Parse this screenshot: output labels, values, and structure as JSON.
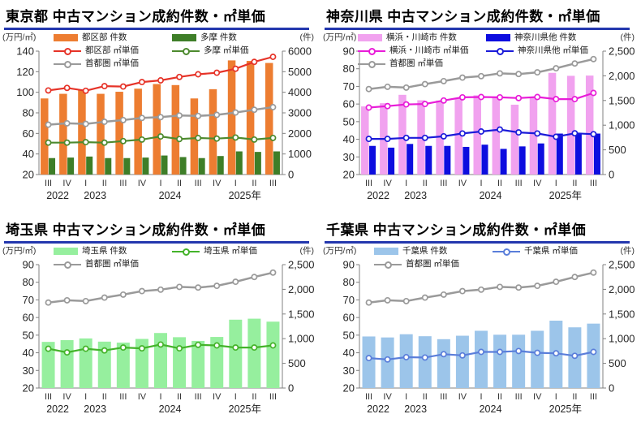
{
  "chart_data": [
    {
      "type": "bar+line",
      "title": "東京都 中古マンション成約件数・㎡単価",
      "left_axis": {
        "unit": "(万円/㎡)",
        "min": 20,
        "max": 140,
        "step": 20
      },
      "right_axis": {
        "unit": "(件)",
        "min": 0,
        "max": 6000,
        "step": 1000,
        "comma": false
      },
      "quarters": [
        "III",
        "IV",
        "I",
        "II",
        "III",
        "IV",
        "I",
        "II",
        "III",
        "IV",
        "I",
        "II",
        "III"
      ],
      "years": [
        {
          "label": "2022",
          "at": 0
        },
        {
          "label": "2023",
          "at": 2
        },
        {
          "label": "2024",
          "at": 6
        },
        {
          "label": "2025年",
          "at": 10
        }
      ],
      "bars": [
        {
          "name": "都区部 件数",
          "color": "#ED7D31",
          "axis": "right",
          "values": [
            3700,
            3925,
            4100,
            3925,
            4025,
            4175,
            4400,
            4350,
            3700,
            4150,
            5550,
            5525,
            5425
          ]
        },
        {
          "name": "多摩 件数",
          "color": "#3E7E28",
          "axis": "right",
          "values": [
            800,
            825,
            875,
            800,
            800,
            825,
            925,
            850,
            800,
            900,
            1125,
            1100,
            1125
          ]
        }
      ],
      "lines": [
        {
          "name": "都区部 ㎡単価",
          "color": "#E63328",
          "axis": "left",
          "values": [
            101.8,
            104.2,
            101.5,
            106.0,
            105.6,
            109.9,
            111.6,
            114.9,
            117.5,
            119.0,
            122.9,
            129.6,
            134.5
          ]
        },
        {
          "name": "多摩 ㎡単価",
          "color": "#4D8A2E",
          "axis": "left",
          "values": [
            51.0,
            51.0,
            51.5,
            51.0,
            52.5,
            54.0,
            57.0,
            54.5,
            55.5,
            55.0,
            56.0,
            54.0,
            55.6
          ]
        },
        {
          "name": "首都圏 ㎡単価",
          "color": "#9A9A9A",
          "axis": "left",
          "values": [
            68.5,
            69.8,
            69.3,
            71.3,
            73.0,
            75.0,
            75.8,
            77.4,
            77.0,
            78.0,
            80.3,
            83.0,
            85.5
          ]
        }
      ]
    },
    {
      "type": "bar+line",
      "title": "神奈川県 中古マンション成約件数・㎡単価",
      "left_axis": {
        "unit": "(万円/㎡)",
        "min": 20,
        "max": 90,
        "step": 10
      },
      "right_axis": {
        "unit": "(件)",
        "min": 0,
        "max": 2500,
        "step": 500,
        "comma": true
      },
      "quarters": [
        "III",
        "IV",
        "I",
        "II",
        "III",
        "IV",
        "I",
        "II",
        "III",
        "IV",
        "I",
        "II",
        "III"
      ],
      "years": [
        {
          "label": "2022",
          "at": 0
        },
        {
          "label": "2023",
          "at": 2
        },
        {
          "label": "2024",
          "at": 6
        },
        {
          "label": "2025年",
          "at": 10
        }
      ],
      "bars": [
        {
          "name": "横浜・川崎市 件数",
          "color": "#F1A2EF",
          "axis": "right",
          "values": [
            1380,
            1445,
            1615,
            1505,
            1500,
            1555,
            1605,
            1570,
            1415,
            1570,
            2060,
            2000,
            2005
          ]
        },
        {
          "name": "神奈川県他 件数",
          "color": "#0D0DDF",
          "axis": "right",
          "values": [
            580,
            545,
            620,
            580,
            580,
            560,
            605,
            520,
            570,
            630,
            830,
            835,
            830
          ]
        }
      ],
      "lines": [
        {
          "name": "横浜・川崎市 ㎡単価",
          "color": "#E81CD8",
          "axis": "left",
          "values": [
            58.0,
            58.8,
            59.8,
            60.0,
            62.0,
            63.8,
            64.0,
            63.8,
            63.4,
            64.0,
            62.8,
            62.8,
            66.3
          ]
        },
        {
          "name": "神奈川県他 ㎡単価",
          "color": "#1B1BD9",
          "axis": "left",
          "values": [
            40.2,
            40.2,
            40.8,
            40.8,
            41.7,
            43.3,
            44.4,
            45.5,
            43.9,
            43.3,
            41.4,
            43.4,
            42.9
          ]
        },
        {
          "name": "首都圏 ㎡単価",
          "color": "#9A9A9A",
          "axis": "left",
          "values": [
            68.5,
            69.8,
            69.3,
            71.3,
            73.0,
            75.0,
            75.8,
            77.4,
            77.0,
            78.0,
            80.3,
            83.0,
            85.5
          ]
        }
      ]
    },
    {
      "type": "bar+line",
      "title": "埼玉県 中古マンション成約件数・㎡単価",
      "left_axis": {
        "unit": "(万円/㎡)",
        "min": 20,
        "max": 90,
        "step": 10
      },
      "right_axis": {
        "unit": "(件)",
        "min": 0,
        "max": 2500,
        "step": 500,
        "comma": true
      },
      "quarters": [
        "III",
        "IV",
        "I",
        "II",
        "III",
        "IV",
        "I",
        "II",
        "III",
        "IV",
        "I",
        "II",
        "III"
      ],
      "years": [
        {
          "label": "2022",
          "at": 0
        },
        {
          "label": "2023",
          "at": 2
        },
        {
          "label": "2024",
          "at": 6
        },
        {
          "label": "2025年",
          "at": 10
        }
      ],
      "bars": [
        {
          "name": "埼玉県 件数",
          "color": "#96EF9E",
          "axis": "right",
          "values": [
            935,
            970,
            1005,
            940,
            920,
            995,
            1115,
            1030,
            955,
            1035,
            1385,
            1405,
            1345
          ]
        }
      ],
      "lines": [
        {
          "name": "埼玉県 ㎡単価",
          "color": "#44B32A",
          "axis": "left",
          "values": [
            42.3,
            40.2,
            42.3,
            41.3,
            43.0,
            42.5,
            44.7,
            42.5,
            44.5,
            44.2,
            43.0,
            43.0,
            44.2
          ]
        },
        {
          "name": "首都圏 ㎡単価",
          "color": "#9A9A9A",
          "axis": "left",
          "values": [
            68.5,
            69.8,
            69.3,
            71.3,
            73.0,
            75.0,
            75.8,
            77.4,
            77.0,
            78.0,
            80.3,
            83.0,
            85.5
          ]
        }
      ]
    },
    {
      "type": "bar+line",
      "title": "千葉県 中古マンション成約件数・㎡単価",
      "left_axis": {
        "unit": "(万円/㎡)",
        "min": 20,
        "max": 90,
        "step": 10
      },
      "right_axis": {
        "unit": "(件)",
        "min": 0,
        "max": 2500,
        "step": 500,
        "comma": true
      },
      "quarters": [
        "III",
        "IV",
        "I",
        "II",
        "III",
        "IV",
        "I",
        "II",
        "III",
        "IV",
        "I",
        "II",
        "III"
      ],
      "years": [
        {
          "label": "2022",
          "at": 0
        },
        {
          "label": "2023",
          "at": 2
        },
        {
          "label": "2024",
          "at": 6
        },
        {
          "label": "2025年",
          "at": 10
        }
      ],
      "bars": [
        {
          "name": "千葉県 件数",
          "color": "#9CC5EA",
          "axis": "right",
          "values": [
            1045,
            1025,
            1090,
            1050,
            990,
            1060,
            1160,
            1080,
            1080,
            1160,
            1365,
            1230,
            1305
          ]
        }
      ],
      "lines": [
        {
          "name": "千葉県 ㎡単価",
          "color": "#5A7EDA",
          "axis": "left",
          "values": [
            37.0,
            36.2,
            37.5,
            37.3,
            39.2,
            38.5,
            40.5,
            40.5,
            41.0,
            40.0,
            39.7,
            38.3,
            40.5
          ]
        },
        {
          "name": "首都圏 ㎡単価",
          "color": "#9A9A9A",
          "axis": "left",
          "values": [
            68.5,
            69.8,
            69.3,
            71.3,
            73.0,
            75.0,
            75.8,
            77.4,
            77.0,
            78.0,
            80.3,
            83.0,
            85.5
          ]
        }
      ]
    }
  ]
}
